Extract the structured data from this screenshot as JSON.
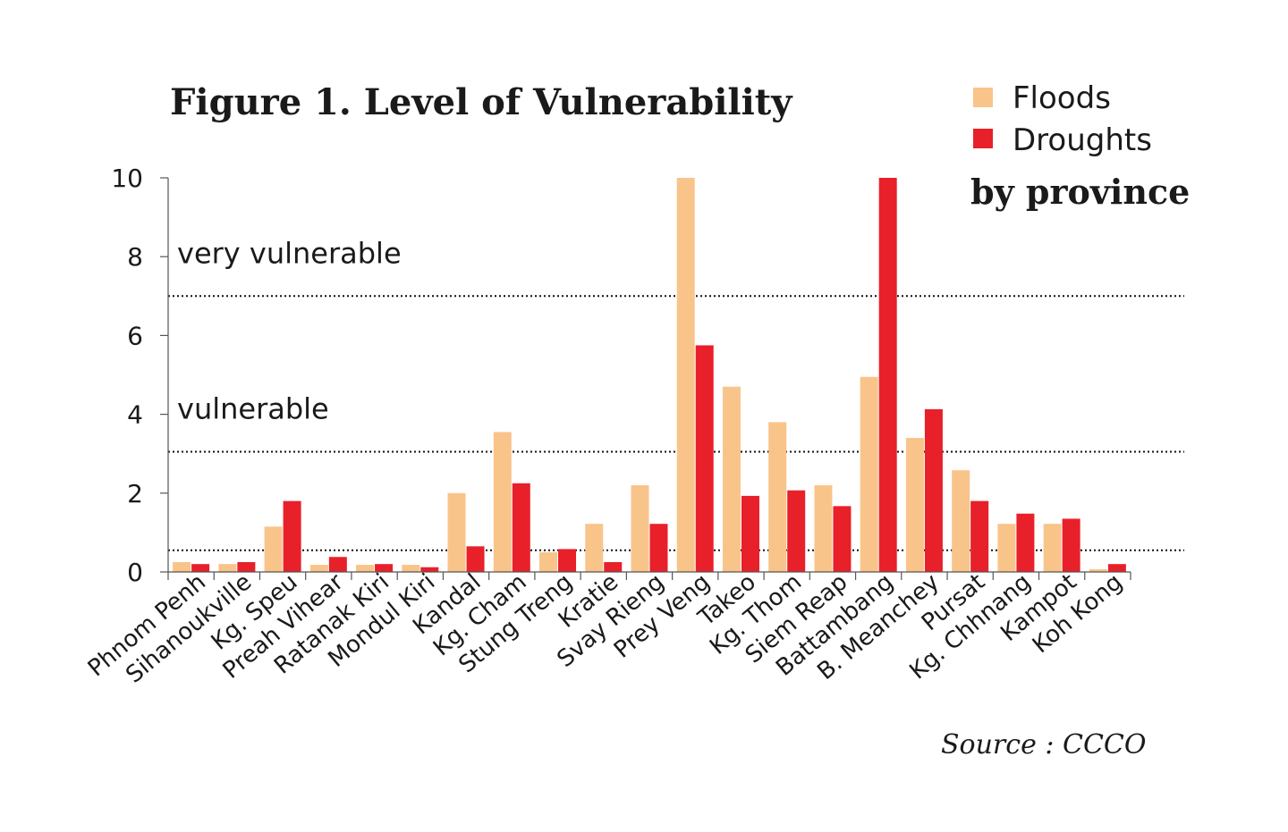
{
  "chart_data": {
    "type": "bar",
    "title": "Figure 1.  Level of Vulnerability",
    "subtitle": "by province",
    "source": "Source   :  CCCO",
    "ylim": [
      0,
      10
    ],
    "yticks": [
      "0",
      "2",
      "4",
      "6",
      "8",
      "10"
    ],
    "legend_position": "top-right",
    "categories": [
      "Phnom Penh",
      "Sihanoukville",
      "Kg. Speu",
      "Preah Vihear",
      "Ratanak Kiri",
      "Mondul Kiri",
      "Kandal",
      "Kg. Cham",
      "Stung Treng",
      "Kratie",
      "Svay Rieng",
      "Prey Veng",
      "Takeo",
      "Kg. Thom",
      "Siem Reap",
      "Battambang",
      "B. Meanchey",
      "Pursat",
      "Kg. Chhnang",
      "Kampot",
      "Koh Kong"
    ],
    "series": [
      {
        "name": "Floods",
        "color": "#f9c48a",
        "values": [
          0.25,
          0.2,
          1.15,
          0.18,
          0.18,
          0.18,
          2.0,
          3.55,
          0.5,
          1.22,
          2.2,
          10.0,
          4.7,
          3.8,
          2.2,
          4.95,
          3.4,
          2.58,
          1.22,
          1.22,
          0.07
        ]
      },
      {
        "name": "Droughts",
        "color": "#e8202a",
        "values": [
          0.2,
          0.25,
          1.8,
          0.38,
          0.2,
          0.12,
          0.65,
          2.25,
          0.58,
          0.25,
          1.22,
          5.75,
          1.93,
          2.07,
          1.67,
          10.0,
          4.13,
          1.8,
          1.48,
          1.35,
          0.2
        ]
      }
    ],
    "reference_lines": [
      {
        "value": 7.0,
        "label": "very vulnerable"
      },
      {
        "value": 3.05,
        "label": "vulnerable"
      },
      {
        "value": 0.55,
        "label": ""
      }
    ]
  }
}
